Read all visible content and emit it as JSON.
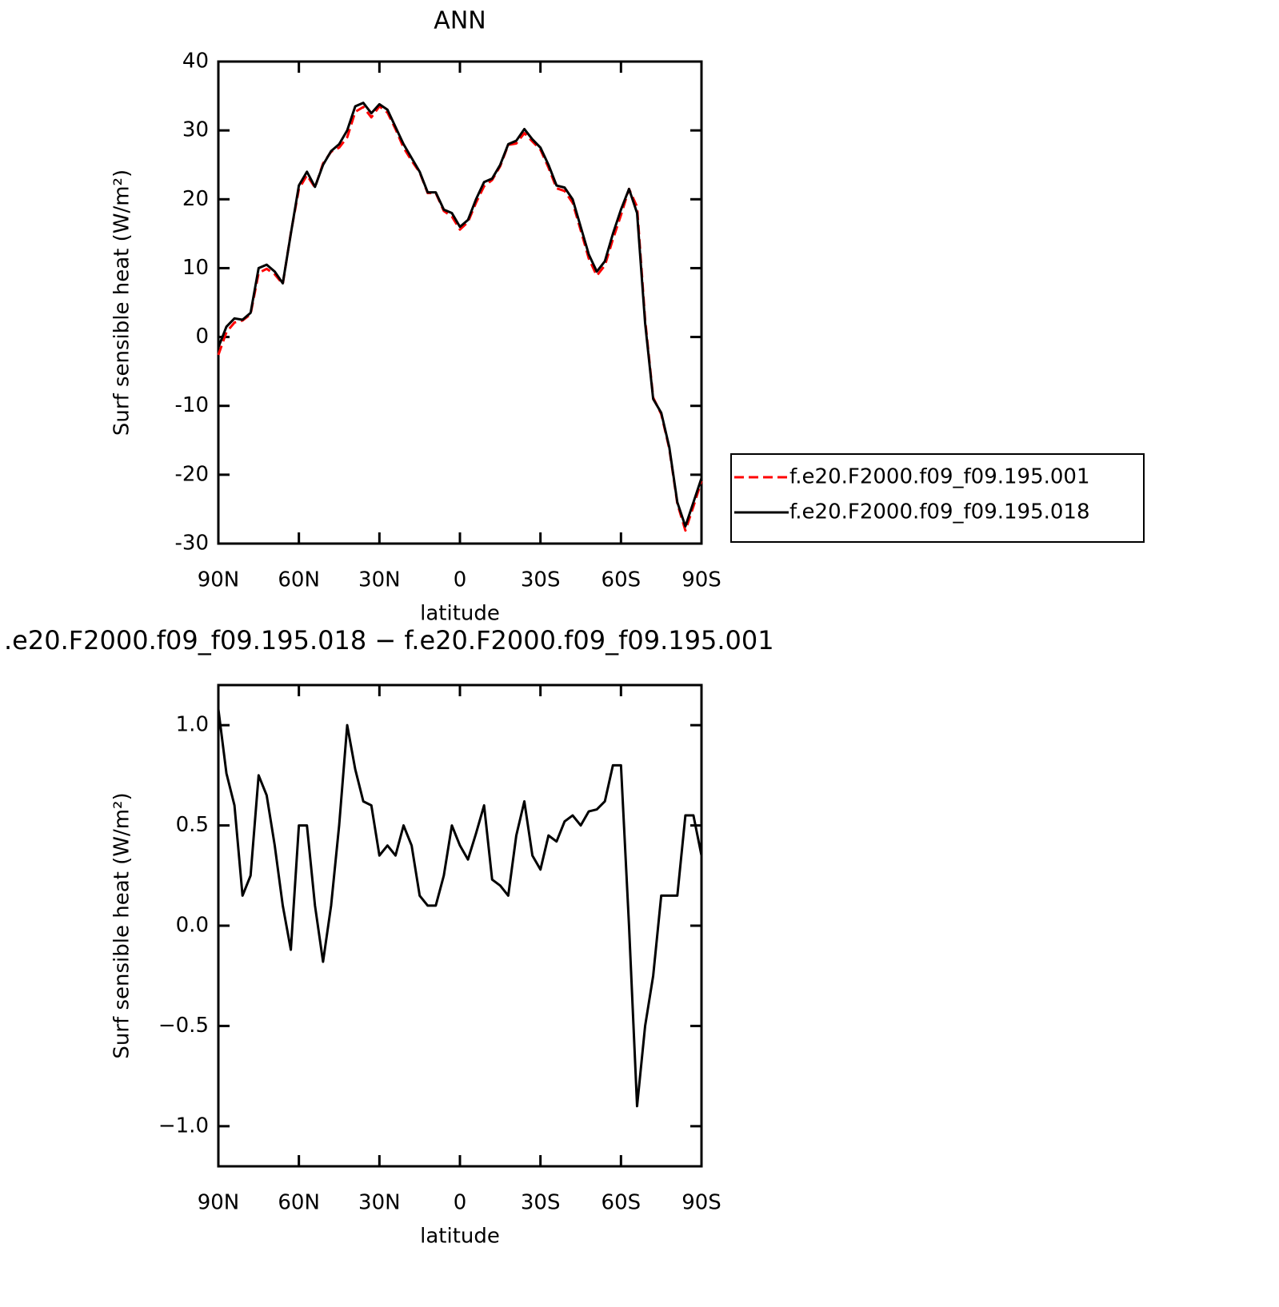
{
  "chart_data": [
    {
      "type": "line",
      "title": "ANN",
      "xlabel": "latitude",
      "ylabel": "Surf sensible heat (W/m²)",
      "x": [
        90,
        87,
        84,
        81,
        78,
        75,
        72,
        69,
        66,
        63,
        60,
        57,
        54,
        51,
        48,
        45,
        42,
        39,
        36,
        33,
        30,
        27,
        24,
        21,
        18,
        15,
        12,
        9,
        6,
        3,
        0,
        -3,
        -6,
        -9,
        -12,
        -15,
        -18,
        -21,
        -24,
        -27,
        -30,
        -33,
        -36,
        -39,
        -42,
        -45,
        -48,
        -51,
        -54,
        -57,
        -60,
        -63,
        -66,
        -69,
        -72,
        -75,
        -78,
        -81,
        -84,
        -87,
        -90
      ],
      "xlim": [
        90,
        -90
      ],
      "xticks": [
        {
          "value": 90,
          "label": "90N"
        },
        {
          "value": 60,
          "label": "60N"
        },
        {
          "value": 30,
          "label": "30N"
        },
        0,
        {
          "value": -30,
          "label": "30S"
        },
        {
          "value": -60,
          "label": "60S"
        },
        {
          "value": -90,
          "label": "90S"
        }
      ],
      "ylim": [
        -30,
        40
      ],
      "yticks": [
        -30,
        -20,
        -10,
        0,
        10,
        20,
        30,
        40
      ],
      "legend": "right",
      "series": [
        {
          "name": "f.e20.F2000.f09_f09.195.001",
          "color": "#ff0000",
          "dash": true,
          "values": [
            -2.6,
            0.7,
            2.1,
            2.4,
            3.3,
            9.3,
            9.9,
            9.1,
            7.7,
            15.1,
            21.5,
            23.5,
            21.7,
            25.2,
            26.9,
            27.5,
            29,
            32.7,
            33.4,
            31.9,
            33.5,
            32.6,
            30.2,
            27.5,
            25.6,
            23.9,
            20.9,
            20.9,
            18.3,
            17.5,
            15.6,
            16.7,
            19.5,
            21.9,
            22.8,
            24.8,
            27.9,
            28.1,
            29.6,
            28.4,
            27.2,
            24.6,
            21.6,
            21.2,
            19.5,
            15.5,
            11.4,
            8.9,
            10.4,
            14.2,
            17.7,
            21.5,
            18.9,
            2.5,
            -8.8,
            -11.2,
            -16.2,
            -24.2,
            -28.1,
            -24.6,
            -20.9
          ]
        },
        {
          "name": "f.e20.F2000.f09_f09.195.018",
          "color": "#000000",
          "dash": false,
          "values": [
            -1.5,
            1.5,
            2.7,
            2.5,
            3.5,
            10,
            10.5,
            9.5,
            7.8,
            15,
            22,
            24,
            21.8,
            25,
            27,
            28,
            30,
            33.5,
            34,
            32.5,
            33.8,
            33,
            30.5,
            28,
            26,
            24,
            21,
            21,
            18.5,
            18,
            16,
            17,
            20,
            22.5,
            23,
            25,
            28,
            28.5,
            30.2,
            28.7,
            27.5,
            25,
            22,
            21.7,
            20,
            16,
            12,
            9.5,
            11,
            15,
            18.5,
            21.5,
            18,
            2,
            -9,
            -11,
            -16,
            -24,
            -27.5,
            -24,
            -20.5
          ]
        }
      ]
    },
    {
      "type": "line",
      "title": ".e20.F2000.f09_f09.195.018 − f.e20.F2000.f09_f09.195.001",
      "xlabel": "latitude",
      "ylabel": "Surf sensible heat (W/m²)",
      "x": [
        90,
        87,
        84,
        81,
        78,
        75,
        72,
        69,
        66,
        63,
        60,
        57,
        54,
        51,
        48,
        45,
        42,
        39,
        36,
        33,
        30,
        27,
        24,
        21,
        18,
        15,
        12,
        9,
        6,
        3,
        0,
        -3,
        -6,
        -9,
        -12,
        -15,
        -18,
        -21,
        -24,
        -27,
        -30,
        -33,
        -36,
        -39,
        -42,
        -45,
        -48,
        -51,
        -54,
        -57,
        -60,
        -63,
        -66,
        -69,
        -72,
        -75,
        -78,
        -81,
        -84,
        -87,
        -90
      ],
      "xlim": [
        90,
        -90
      ],
      "xticks": [
        {
          "value": 90,
          "label": "90N"
        },
        {
          "value": 60,
          "label": "60N"
        },
        {
          "value": 30,
          "label": "30N"
        },
        0,
        {
          "value": -30,
          "label": "30S"
        },
        {
          "value": -60,
          "label": "60S"
        },
        {
          "value": -90,
          "label": "90S"
        }
      ],
      "ylim": [
        -1.2,
        1.2
      ],
      "yticks": [
        {
          "value": -1,
          "label": "−1.0"
        },
        {
          "value": -0.5,
          "label": "−0.5"
        },
        {
          "value": 0,
          "label": "0.0"
        },
        0.5,
        {
          "value": 1,
          "label": "1.0"
        }
      ],
      "series": [
        {
          "color": "#000000",
          "dash": false,
          "values": [
            1.08,
            0.76,
            0.6,
            0.15,
            0.25,
            0.75,
            0.65,
            0.4,
            0.1,
            -0.12,
            0.5,
            0.5,
            0.1,
            -0.18,
            0.1,
            0.5,
            1.0,
            0.78,
            0.62,
            0.6,
            0.35,
            0.4,
            0.35,
            0.5,
            0.4,
            0.15,
            0.1,
            0.1,
            0.25,
            0.5,
            0.4,
            0.33,
            0.46,
            0.6,
            0.23,
            0.2,
            0.15,
            0.45,
            0.62,
            0.35,
            0.28,
            0.45,
            0.42,
            0.52,
            0.55,
            0.5,
            0.57,
            0.58,
            0.62,
            0.8,
            0.8,
            0.0,
            -0.9,
            -0.5,
            -0.25,
            0.15,
            0.15,
            0.15,
            0.55,
            0.55,
            0.35
          ]
        }
      ]
    }
  ]
}
